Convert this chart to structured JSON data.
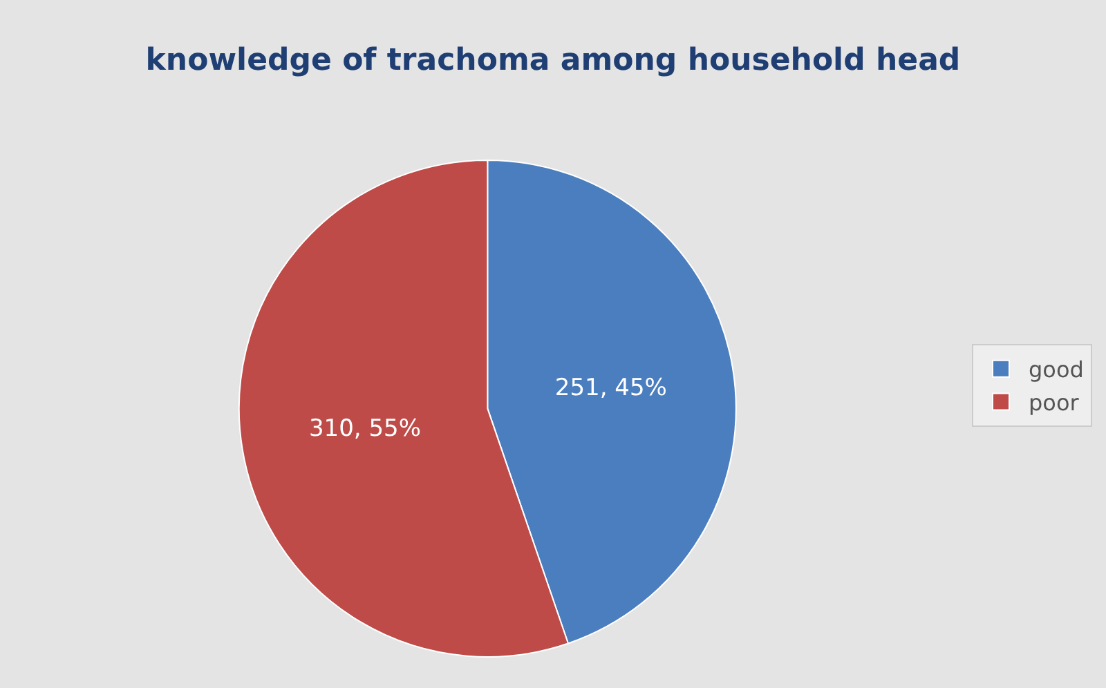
{
  "chart_data": {
    "type": "pie",
    "title": "knowledge of trachoma among household head",
    "categories": [
      "good",
      "poor"
    ],
    "values": [
      251,
      310
    ],
    "colors": [
      "#4a7ebf",
      "#be4b48"
    ],
    "value_labels": [
      "251, 45%",
      "310, 55%"
    ],
    "legend": "right"
  }
}
